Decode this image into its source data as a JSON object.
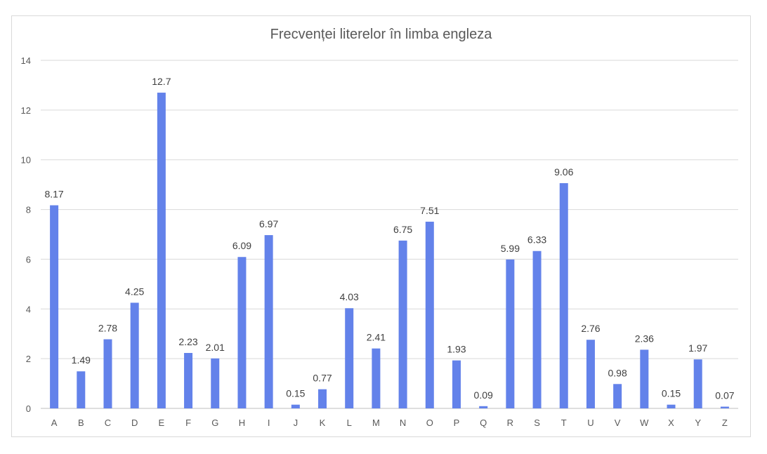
{
  "chart_data": {
    "type": "bar",
    "title": "Frecvenței literelor în limba engleza",
    "xlabel": "",
    "ylabel": "",
    "ylim": [
      0,
      14
    ],
    "yticks": [
      0,
      2,
      4,
      6,
      8,
      10,
      12,
      14
    ],
    "grid": true,
    "legend": "none",
    "bar_color": "#6382EA",
    "categories": [
      "A",
      "B",
      "C",
      "D",
      "E",
      "F",
      "G",
      "H",
      "I",
      "J",
      "K",
      "L",
      "M",
      "N",
      "O",
      "P",
      "Q",
      "R",
      "S",
      "T",
      "U",
      "V",
      "W",
      "X",
      "Y",
      "Z"
    ],
    "values": [
      8.17,
      1.49,
      2.78,
      4.25,
      12.7,
      2.23,
      2.01,
      6.09,
      6.97,
      0.15,
      0.77,
      4.03,
      2.41,
      6.75,
      7.51,
      1.93,
      0.09,
      5.99,
      6.33,
      9.06,
      2.76,
      0.98,
      2.36,
      0.15,
      1.97,
      0.07
    ],
    "data_labels": [
      "8.17",
      "1.49",
      "2.78",
      "4.25",
      "12.7",
      "2.23",
      "2.01",
      "6.09",
      "6.97",
      "0.15",
      "0.77",
      "4.03",
      "2.41",
      "6.75",
      "7.51",
      "1.93",
      "0.09",
      "5.99",
      "6.33",
      "9.06",
      "2.76",
      "0.98",
      "2.36",
      "0.15",
      "1.97",
      "0.07"
    ]
  }
}
